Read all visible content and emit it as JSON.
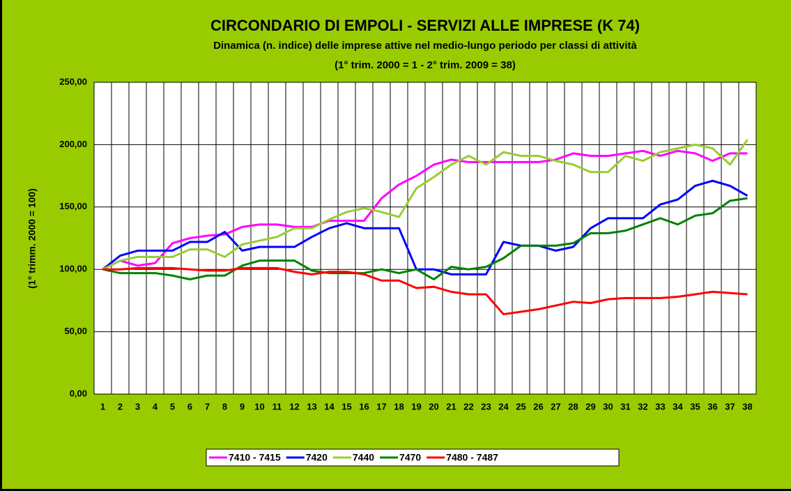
{
  "chart_data": {
    "type": "line",
    "title": "CIRCONDARIO DI EMPOLI - SERVIZI ALLE IMPRESE (K 74)",
    "subtitle": "Dinamica (n. indice) delle imprese attive nel medio-lungo periodo per classi di attività",
    "subtitle2": "(1° trim. 2000 = 1   -   2° trim. 2009 = 38)",
    "y_label": "(1° trimm. 2000 = 100)",
    "categories": [
      "1",
      "2",
      "3",
      "4",
      "5",
      "6",
      "7",
      "8",
      "9",
      "10",
      "11",
      "12",
      "13",
      "14",
      "15",
      "16",
      "17",
      "18",
      "19",
      "20",
      "21",
      "22",
      "23",
      "24",
      "25",
      "26",
      "27",
      "28",
      "29",
      "30",
      "31",
      "32",
      "33",
      "34",
      "35",
      "36",
      "37",
      "38"
    ],
    "series": [
      {
        "name": "7410 - 7415",
        "color": "#ff00ff",
        "values": [
          100,
          107,
          103,
          105,
          121,
          125,
          127,
          128,
          134,
          136,
          136,
          134,
          134,
          139,
          139,
          139,
          157,
          168,
          175,
          184,
          188,
          186,
          186,
          186,
          186,
          186,
          188,
          193,
          191,
          191,
          193,
          195,
          191,
          195,
          193,
          187,
          193,
          193
        ]
      },
      {
        "name": "7420",
        "color": "#0000ff",
        "values": [
          100,
          111,
          115,
          115,
          115,
          122,
          122,
          130,
          115,
          118,
          118,
          118,
          126,
          133,
          137,
          133,
          133,
          133,
          100,
          100,
          96,
          96,
          96,
          122,
          119,
          119,
          115,
          118,
          133,
          141,
          141,
          141,
          152,
          156,
          167,
          171,
          167,
          159
        ]
      },
      {
        "name": "7440",
        "color": "#99cc33",
        "values": [
          100,
          107,
          110,
          110,
          110,
          116,
          116,
          110,
          120,
          123,
          126,
          133,
          133,
          140,
          146,
          149,
          146,
          142,
          165,
          174,
          184,
          191,
          184,
          194,
          191,
          191,
          187,
          184,
          178,
          178,
          191,
          187,
          194,
          197,
          200,
          197,
          184,
          204
        ]
      },
      {
        "name": "7470",
        "color": "#008000",
        "values": [
          100,
          97,
          97,
          97,
          95,
          92,
          95,
          95,
          103,
          107,
          107,
          107,
          99,
          97,
          97,
          97,
          100,
          97,
          100,
          92,
          102,
          100,
          102,
          109,
          119,
          119,
          119,
          121,
          129,
          129,
          131,
          136,
          141,
          136,
          143,
          145,
          155,
          157
        ]
      },
      {
        "name": "7480 - 7487",
        "color": "#ff0000",
        "values": [
          100,
          100,
          101,
          101,
          101,
          100,
          99,
          99,
          101,
          101,
          101,
          98,
          96,
          98,
          98,
          96,
          91,
          91,
          85,
          86,
          82,
          80,
          80,
          64,
          66,
          68,
          71,
          74,
          73,
          76,
          77,
          77,
          77,
          78,
          80,
          82,
          81,
          80
        ]
      }
    ],
    "ylim": [
      0,
      250
    ],
    "yticks": [
      {
        "value": 0,
        "label": "0,00"
      },
      {
        "value": 50,
        "label": "50,00"
      },
      {
        "value": 100,
        "label": "100,00"
      },
      {
        "value": 150,
        "label": "150,00"
      },
      {
        "value": 200,
        "label": "200,00"
      },
      {
        "value": 250,
        "label": "250,00"
      }
    ],
    "grid": true,
    "legend": "bottom"
  }
}
